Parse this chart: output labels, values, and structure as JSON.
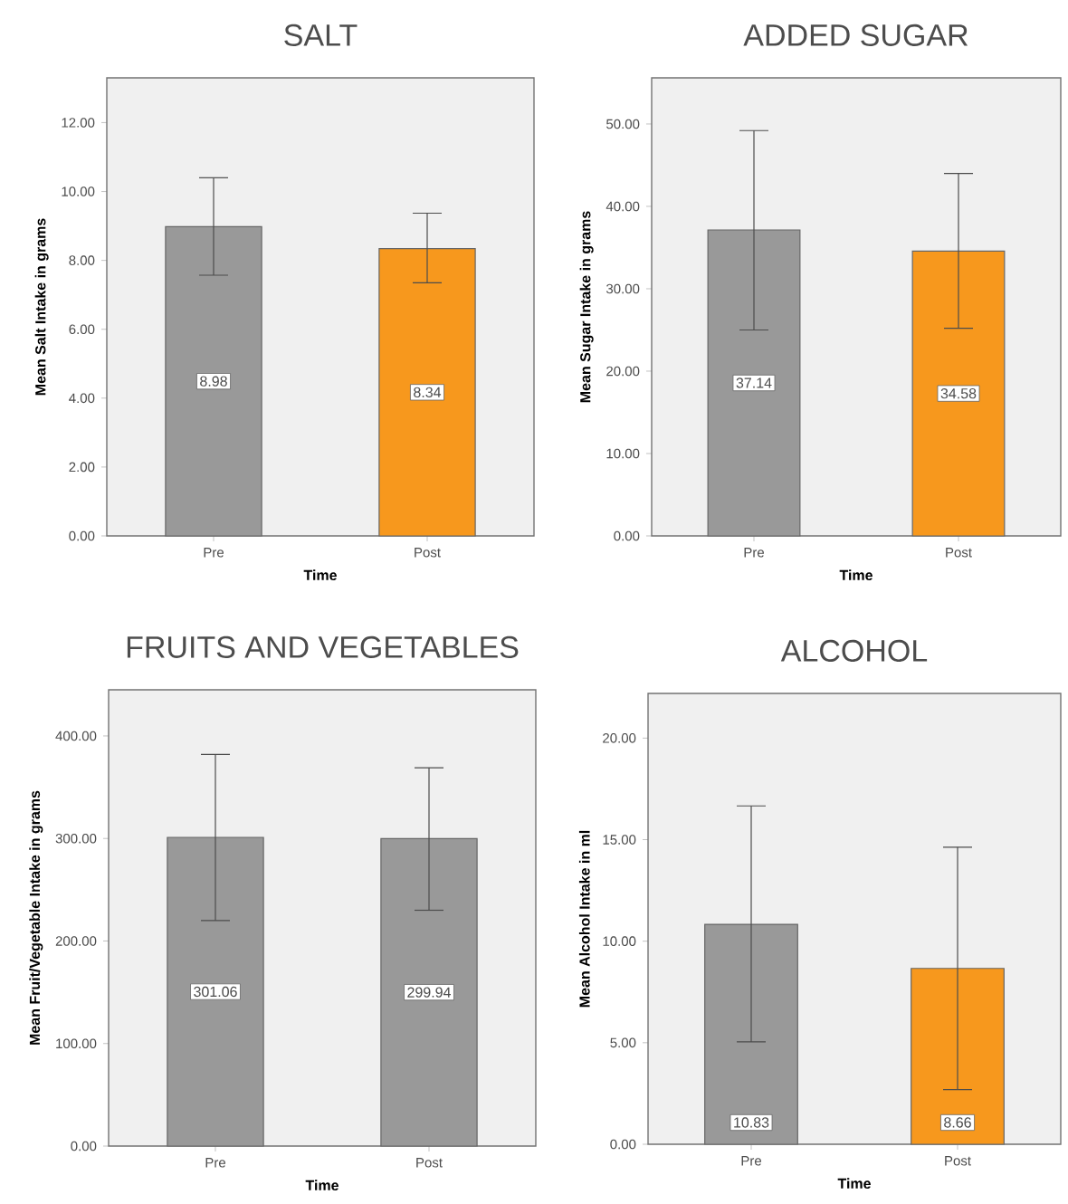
{
  "chart_data": [
    {
      "type": "bar",
      "title": "SALT",
      "xlabel": "Time",
      "ylabel": "Mean Salt Intake in grams",
      "categories": [
        "Pre",
        "Post"
      ],
      "values": [
        8.98,
        8.34
      ],
      "colors": [
        "#999999",
        "#f7981d"
      ],
      "errors": [
        [
          7.57,
          10.4
        ],
        [
          7.35,
          9.37
        ]
      ],
      "data_labels": true,
      "ylim": [
        0,
        13.3
      ],
      "yticks": [
        {
          "value": 0,
          "label": "0.00"
        },
        {
          "value": 2,
          "label": "2.00"
        },
        {
          "value": 4,
          "label": "4.00"
        },
        {
          "value": 6,
          "label": "6.00"
        },
        {
          "value": 8,
          "label": "8.00"
        },
        {
          "value": 10,
          "label": "10.00"
        },
        {
          "value": 12,
          "label": "12.00"
        }
      ]
    },
    {
      "type": "bar",
      "title": "ADDED SUGAR",
      "xlabel": "Time",
      "ylabel": "Mean Sugar Intake in grams",
      "categories": [
        "Pre",
        "Post"
      ],
      "values": [
        37.14,
        34.58
      ],
      "colors": [
        "#999999",
        "#f7981d"
      ],
      "errors": [
        [
          25.0,
          49.2
        ],
        [
          25.2,
          44.0
        ]
      ],
      "data_labels": true,
      "ylim": [
        0,
        55.6
      ],
      "yticks": [
        {
          "value": 0,
          "label": "0.00"
        },
        {
          "value": 10,
          "label": "10.00"
        },
        {
          "value": 20,
          "label": "20.00"
        },
        {
          "value": 30,
          "label": "30.00"
        },
        {
          "value": 40,
          "label": "40.00"
        },
        {
          "value": 50,
          "label": "50.00"
        }
      ]
    },
    {
      "type": "bar",
      "title": "FRUITS AND VEGETABLES",
      "xlabel": "Time",
      "ylabel": "Mean Fruit/Vegetable Intake in grams",
      "categories": [
        "Pre",
        "Post"
      ],
      "values": [
        301.06,
        299.94
      ],
      "colors": [
        "#999999",
        "#999999"
      ],
      "errors": [
        [
          220,
          382
        ],
        [
          230,
          369
        ]
      ],
      "data_labels": true,
      "ylim": [
        0,
        445
      ],
      "yticks": [
        {
          "value": 0,
          "label": "0.00"
        },
        {
          "value": 100,
          "label": "100.00"
        },
        {
          "value": 200,
          "label": "200.00"
        },
        {
          "value": 300,
          "label": "300.00"
        },
        {
          "value": 400,
          "label": "400.00"
        }
      ]
    },
    {
      "type": "bar",
      "title": "ALCOHOL",
      "xlabel": "Time",
      "ylabel": "Mean Alcohol Intake in ml",
      "categories": [
        "Pre",
        "Post"
      ],
      "values": [
        10.83,
        8.66
      ],
      "colors": [
        "#999999",
        "#f7981d"
      ],
      "errors": [
        [
          5.04,
          16.66
        ],
        [
          2.69,
          14.63
        ]
      ],
      "data_labels": true,
      "ylim": [
        0,
        22.2
      ],
      "yticks": [
        {
          "value": 0,
          "label": "0.00"
        },
        {
          "value": 5,
          "label": "5.00"
        },
        {
          "value": 10,
          "label": "10.00"
        },
        {
          "value": 15,
          "label": "15.00"
        },
        {
          "value": 20,
          "label": "20.00"
        }
      ]
    }
  ]
}
